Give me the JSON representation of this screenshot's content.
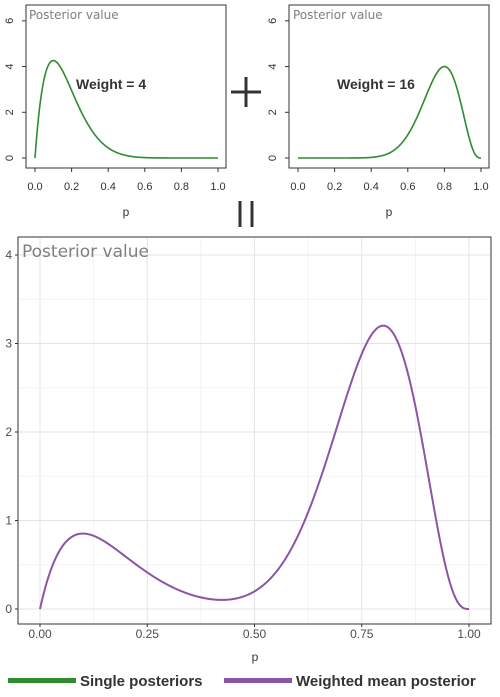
{
  "chart_data": [
    {
      "id": "left",
      "type": "line",
      "title": "Posterior value",
      "xlabel": "p",
      "xlim": [
        0,
        1
      ],
      "ylim": [
        0,
        6.3
      ],
      "xticks": [
        0,
        0.2,
        0.4,
        0.6,
        0.8,
        1
      ],
      "xtick_labels": [
        "0.0",
        "0.2",
        "0.4",
        "0.6",
        "0.8",
        "1.0"
      ],
      "yticks": [
        0,
        2,
        4,
        6
      ],
      "ytick_labels": [
        "0",
        "2",
        "4",
        "6"
      ],
      "annotation": "Weight = 4",
      "line_color": "#2e8b2e",
      "series": [
        {
          "distribution": "beta",
          "alpha": 2,
          "beta": 10
        }
      ]
    },
    {
      "id": "right",
      "type": "line",
      "title": "Posterior value",
      "xlabel": "p",
      "xlim": [
        0,
        1
      ],
      "ylim": [
        0,
        6.3
      ],
      "xticks": [
        0,
        0.2,
        0.4,
        0.6,
        0.8,
        1
      ],
      "xtick_labels": [
        "0.0",
        "0.2",
        "0.4",
        "0.6",
        "0.8",
        "1.0"
      ],
      "yticks": [
        0,
        2,
        4,
        6
      ],
      "ytick_labels": [
        "0",
        "2",
        "4",
        "6"
      ],
      "annotation": "Weight = 16",
      "line_color": "#2e8b2e",
      "series": [
        {
          "distribution": "beta",
          "alpha": 13,
          "beta": 4
        }
      ]
    },
    {
      "id": "bottom",
      "type": "line",
      "title": "Posterior value",
      "xlabel": "p",
      "xlim": [
        0,
        1
      ],
      "ylim": [
        0,
        4
      ],
      "xticks": [
        0,
        0.25,
        0.5,
        0.75,
        1
      ],
      "xtick_labels": [
        "0.00",
        "0.25",
        "0.50",
        "0.75",
        "1.00"
      ],
      "yticks": [
        0,
        1,
        2,
        3,
        4
      ],
      "ytick_labels": [
        "0",
        "1",
        "2",
        "3",
        "4"
      ],
      "grid": true,
      "line_color": "#8b55a5",
      "series": [
        {
          "distribution": "beta_mixture",
          "weights": [
            0.2,
            0.8
          ],
          "components": [
            [
              2,
              10
            ],
            [
              13,
              4
            ]
          ]
        }
      ]
    }
  ],
  "operators": {
    "plus": "+",
    "equals": "||"
  },
  "legend": {
    "position": "bottom",
    "items": [
      {
        "label": "Single posteriors",
        "color": "#2e8b2e"
      },
      {
        "label": "Weighted mean posterior",
        "color": "#8b55a5"
      }
    ]
  }
}
